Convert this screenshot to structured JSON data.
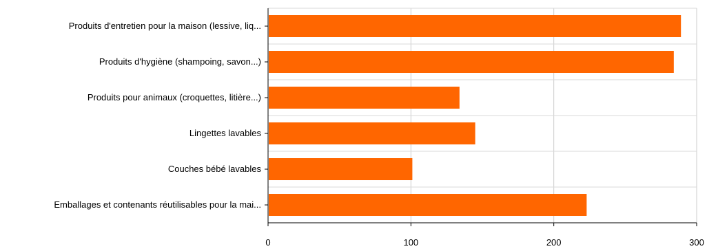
{
  "chart_data": {
    "type": "bar",
    "orientation": "horizontal",
    "categories": [
      "Produits d'entretien pour la maison (lessive, liq...",
      "Produits d'hygiène (shampoing, savon...)",
      "Produits pour animaux (croquettes, litière...)",
      "Lingettes lavables",
      "Couches bébé lavables",
      "Emballages et contenants réutilisables pour la mai..."
    ],
    "values": [
      289,
      284,
      134,
      145,
      101,
      223
    ],
    "xlim": [
      0,
      300
    ],
    "xticks": [
      0,
      100,
      200,
      300
    ],
    "grid": true,
    "bar_color": "#ff6600",
    "title": "",
    "xlabel": "",
    "ylabel": ""
  }
}
